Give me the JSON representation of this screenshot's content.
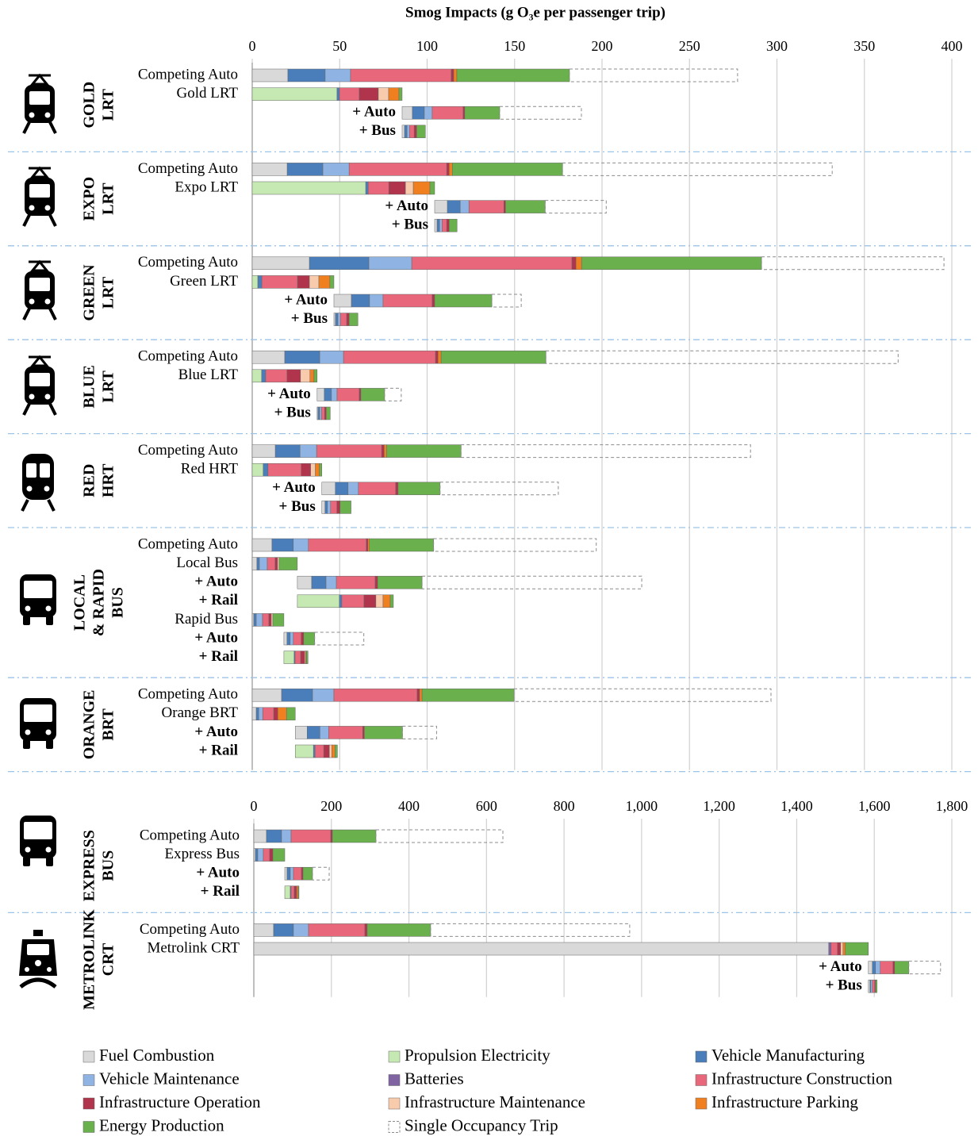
{
  "chart_data": [
    {
      "type": "bar",
      "orientation": "horizontal",
      "title": "Smog Impacts (g O₃e per passenger trip)",
      "xlim": [
        0,
        400
      ],
      "xticks": [
        0,
        50,
        100,
        150,
        200,
        250,
        300,
        350,
        400
      ],
      "grid": true,
      "series": [
        {
          "name": "Fuel Combustion",
          "color": "#d9d9d9"
        },
        {
          "name": "Propulsion Electricity",
          "color": "#c6e9b4"
        },
        {
          "name": "Vehicle Manufacturing",
          "color": "#4a7ebb"
        },
        {
          "name": "Vehicle Maintenance",
          "color": "#8fb4e3"
        },
        {
          "name": "Batteries",
          "color": "#8064a2"
        },
        {
          "name": "Infrastructure Construction",
          "color": "#e8677a"
        },
        {
          "name": "Infrastructure Operation",
          "color": "#b0344c"
        },
        {
          "name": "Infrastructure Maintenance",
          "color": "#f8cbad"
        },
        {
          "name": "Infrastructure Parking",
          "color": "#f07f20"
        },
        {
          "name": "Energy Production",
          "color": "#6ab04c"
        },
        {
          "name": "Single Occupancy Trip",
          "color": "#8c8c8c",
          "dashed": true
        }
      ],
      "groups": [
        {
          "label": [
            "GOLD",
            "LRT"
          ],
          "categories": [
            "Competing Auto",
            "Gold LRT",
            "+ Auto",
            "+ Bus"
          ],
          "values": [
            [
              20.4,
              null,
              21.3,
              14.5,
              null,
              57.6,
              1.4,
              null,
              1.8,
              64.4,
              96.1
            ],
            [
              null,
              48.5,
              1.4,
              null,
              null,
              11.3,
              10.9,
              5.9,
              5.9,
              1.8,
              null
            ],
            [
              5.9,
              null,
              6.8,
              4.5,
              null,
              17.7,
              0.9,
              null,
              null,
              20,
              46.7
            ],
            [
              1.4,
              null,
              1.4,
              1.4,
              null,
              2.7,
              1.4,
              null,
              null,
              5,
              null
            ]
          ]
        },
        {
          "label": [
            "EXPO",
            "LRT"
          ],
          "categories": [
            "Competing Auto",
            "Expo LRT",
            "+ Auto",
            "+ Bus"
          ],
          "values": [
            [
              20,
              null,
              20.4,
              15,
              null,
              55.8,
              1.4,
              null,
              1.8,
              63,
              154.2
            ],
            [
              null,
              64.9,
              1.4,
              null,
              null,
              11.8,
              9.5,
              4.5,
              9.5,
              2.7,
              null
            ],
            [
              7.3,
              null,
              7.3,
              5,
              null,
              20,
              0.9,
              null,
              null,
              22.7,
              34.9
            ],
            [
              1.4,
              null,
              1.4,
              1.4,
              null,
              2.7,
              1.4,
              null,
              null,
              4.5,
              null
            ]
          ]
        },
        {
          "label": [
            "GREEN",
            "LRT"
          ],
          "categories": [
            "Competing Auto",
            "Green LRT",
            "+ Auto",
            "+ Bus"
          ],
          "values": [
            [
              32.7,
              null,
              34,
              24.5,
              null,
              91.6,
              2.3,
              null,
              3.2,
              102.9,
              104.3
            ],
            [
              null,
              3.2,
              2.3,
              null,
              null,
              20.4,
              6.8,
              5.4,
              6.3,
              2.3,
              null
            ],
            [
              10,
              null,
              10.4,
              7.7,
              null,
              28.1,
              1.4,
              null,
              null,
              32.7,
              16.8
            ],
            [
              0.9,
              null,
              1.4,
              1.4,
              null,
              3.6,
              1.4,
              null,
              null,
              5,
              null
            ]
          ]
        },
        {
          "label": [
            "BLUE",
            "LRT"
          ],
          "categories": [
            "Competing Auto",
            "Blue LRT",
            "+ Auto",
            "+ Bus"
          ],
          "values": [
            [
              18.6,
              null,
              20,
              13.6,
              null,
              52.6,
              1.4,
              null,
              1.8,
              59.9,
              201.4
            ],
            [
              null,
              5.4,
              2.3,
              null,
              null,
              12.2,
              7.7,
              5.4,
              2.3,
              1.8,
              null
            ],
            [
              4.1,
              null,
              4.1,
              3.2,
              null,
              12.7,
              0.9,
              null,
              null,
              13.6,
              9.5
            ],
            [
              0.5,
              null,
              1,
              1,
              null,
              1.8,
              0.9,
              null,
              null,
              2.3,
              null
            ]
          ]
        },
        {
          "label": [
            "RED",
            "HRT"
          ],
          "categories": [
            "Competing Auto",
            "Red HRT",
            "+ Auto",
            "+ Bus"
          ],
          "values": [
            [
              13.2,
              null,
              14.1,
              9.5,
              null,
              37.2,
              1.4,
              null,
              1.4,
              42.6,
              165.5
            ],
            [
              null,
              6.3,
              2.7,
              null,
              null,
              19,
              5.4,
              2.7,
              2.3,
              1.4,
              null
            ],
            [
              7.7,
              null,
              7.3,
              5.9,
              null,
              21.3,
              1.4,
              null,
              null,
              24,
              67.6
            ],
            [
              1.8,
              null,
              1.4,
              1.8,
              null,
              3.6,
              1.8,
              null,
              null,
              6.3,
              null
            ]
          ]
        },
        {
          "label": [
            "LOCAL",
            "& RAPID",
            "BUS"
          ],
          "categories": [
            "Competing Auto",
            "Local Bus",
            "+ Auto",
            "+ Rail",
            "Rapid Bus",
            "+ Auto",
            "+ Rail"
          ],
          "values": [
            [
              11.3,
              null,
              12.2,
              8.6,
              null,
              33.1,
              0.9,
              null,
              0.9,
              36.7,
              93
            ],
            [
              2.7,
              null,
              1.4,
              4.5,
              null,
              4.5,
              1.4,
              0.9,
              null,
              10.4,
              null
            ],
            [
              8.2,
              null,
              8.2,
              5.9,
              null,
              22.2,
              1.4,
              null,
              null,
              25.4,
              125.6
            ],
            [
              null,
              24,
              1.4,
              null,
              null,
              12.7,
              6.8,
              4.1,
              4.1,
              1.8,
              null
            ],
            [
              0.9,
              null,
              1.4,
              3.6,
              null,
              3.6,
              1.4,
              0.9,
              null,
              6.3,
              null
            ],
            [
              1.8,
              null,
              1.8,
              1.8,
              null,
              4.5,
              1.4,
              null,
              null,
              6.3,
              28.1
            ],
            [
              null,
              5.9,
              0.5,
              null,
              null,
              3.2,
              2.3,
              0.5,
              0.5,
              0.9,
              null
            ]
          ]
        },
        {
          "label": [
            "ORANGE",
            "BRT"
          ],
          "categories": [
            "Competing Auto",
            "Orange BRT",
            "+ Auto",
            "+ Rail"
          ],
          "values": [
            [
              16.8,
              null,
              17.7,
              12.2,
              null,
              47.6,
              1.4,
              null,
              1.4,
              52.6,
              146.9
            ],
            [
              2.3,
              null,
              1.4,
              2.3,
              null,
              6.3,
              2.3,
              null,
              5,
              5,
              null
            ],
            [
              6.8,
              null,
              7.3,
              5,
              null,
              19.5,
              0.9,
              null,
              null,
              21.8,
              19.5
            ],
            [
              null,
              10.4,
              0.9,
              null,
              null,
              5,
              3.2,
              1.4,
              1.8,
              1.4,
              null
            ]
          ]
        }
      ]
    },
    {
      "type": "bar",
      "orientation": "horizontal",
      "xlim": [
        0,
        1800
      ],
      "xticks": [
        0,
        200,
        400,
        600,
        800,
        {
          "value": 1000,
          "label": "1,000"
        },
        {
          "value": 1200,
          "label": "1,200"
        },
        {
          "value": 1400,
          "label": "1,400"
        },
        {
          "value": 1600,
          "label": "1,600"
        },
        {
          "value": 1800,
          "label": "1,800"
        }
      ],
      "grid": true,
      "groups": [
        {
          "label": [
            "EXPRESS",
            "BUS"
          ],
          "categories": [
            "Competing Auto",
            "Express Bus",
            "+ Auto",
            "+ Rail"
          ],
          "values": [
            [
              32.7,
              null,
              38.9,
              24.5,
              null,
              102.3,
              4.1,
              null,
              null,
              112.5,
              327.3
            ],
            [
              4.1,
              null,
              6.1,
              14.3,
              null,
              16.4,
              8.2,
              null,
              null,
              30.7,
              null
            ],
            [
              6.1,
              null,
              8.2,
              8.2,
              null,
              20.5,
              4.1,
              null,
              null,
              24.5,
              43
            ],
            [
              null,
              14.3,
              2,
              null,
              null,
              8.2,
              6.1,
              null,
              4.1,
              2,
              null
            ]
          ]
        },
        {
          "label": [
            "METROLINK",
            "CRT"
          ],
          "categories": [
            "Competing Auto",
            "Metrolink CRT",
            "+ Auto",
            "+ Bus"
          ],
          "values": [
            [
              51.1,
              null,
              51.1,
              38.9,
              null,
              145.2,
              6.1,
              null,
              null,
              163.6,
              513.3
            ],
            [
              1482.6,
              null,
              null,
              null,
              6.1,
              16.4,
              8.2,
              6.1,
              6.1,
              59.3,
              null
            ],
            [
              10.2,
              null,
              8.2,
              12.3,
              null,
              32.7,
              4.1,
              null,
              null,
              36.8,
              81.8
            ],
            [
              4.1,
              null,
              2,
              4.1,
              null,
              6.1,
              2,
              null,
              null,
              4.1,
              null
            ]
          ]
        }
      ]
    }
  ]
}
